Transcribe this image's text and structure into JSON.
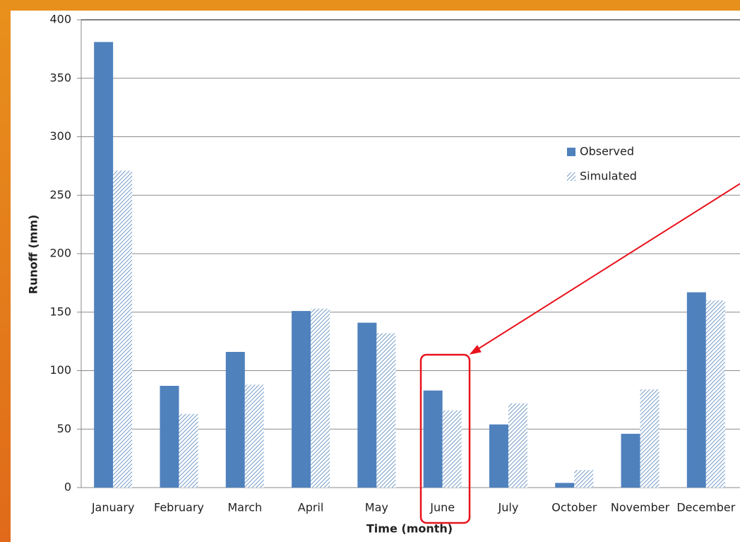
{
  "chart_data": {
    "type": "bar",
    "x_label": "Time (month)",
    "y_label": "Runoff (mm)",
    "categories": [
      "January",
      "February",
      "March",
      "April",
      "May",
      "June",
      "July",
      "October",
      "November",
      "December"
    ],
    "series": [
      {
        "name": "Observed",
        "color": "#4f81bd",
        "pattern": "solid",
        "values": [
          381,
          87,
          116,
          151,
          141,
          83,
          54,
          4,
          46,
          167
        ]
      },
      {
        "name": "Simulated",
        "color": "#4f81bd",
        "pattern": "hatch",
        "values": [
          271,
          63,
          88,
          153,
          132,
          66,
          72,
          15,
          84,
          160
        ]
      }
    ],
    "ylim": [
      0,
      400
    ],
    "yticks": [
      0,
      50,
      100,
      150,
      200,
      250,
      300,
      350,
      400
    ],
    "grid": true,
    "legend": "upper-right"
  }
}
